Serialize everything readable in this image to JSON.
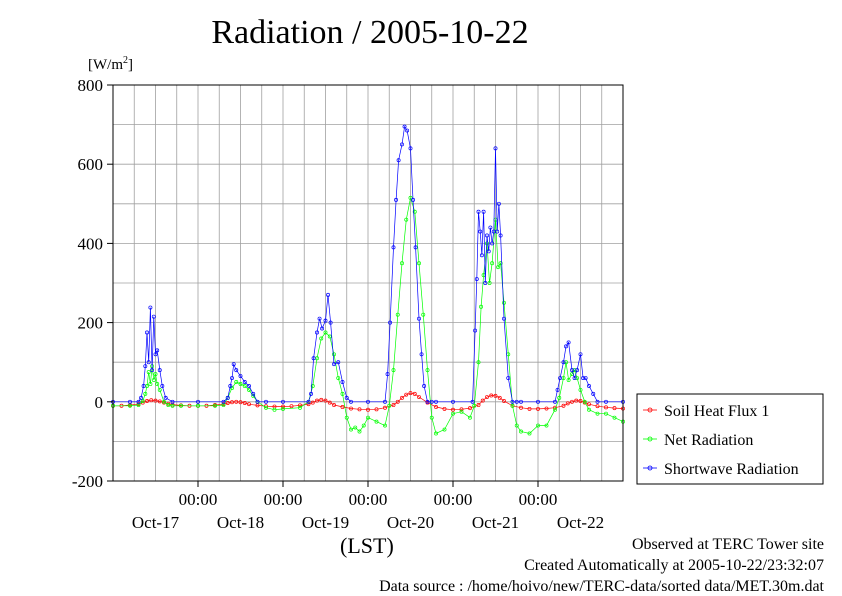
{
  "colors": {
    "soil": "#ff0000",
    "net": "#00ff00",
    "shortwave": "#0000ff",
    "grid": "#a0a0a0",
    "frame": "#000000"
  },
  "footer": {
    "line1": "Observed at TERC Tower site",
    "line2": "Created Automatically at 2005-10-22/23:32:07",
    "line3": "Data source : /home/hoivo/new/TERC-data/sorted  data/MET.30m.dat"
  },
  "chart_data": {
    "type": "line",
    "title": "Radiation / 2005-10-22",
    "ylabel": "[W/m2]",
    "xlabel": "(LST)",
    "ylim": [
      -200,
      800
    ],
    "yticks": [
      -200,
      0,
      200,
      400,
      600,
      800
    ],
    "xlim_days": [
      0,
      6
    ],
    "xtick_labels": [
      "00:00",
      "00:00",
      "00:00",
      "00:00",
      "00:00"
    ],
    "xtick_positions": [
      1,
      2,
      3,
      4,
      5
    ],
    "day_labels": [
      "Oct-17",
      "Oct-18",
      "Oct-19",
      "Oct-20",
      "Oct-21",
      "Oct-22"
    ],
    "day_label_positions": [
      0.5,
      1.5,
      2.5,
      3.5,
      4.5,
      5.5
    ],
    "grid": true,
    "legend_position": "right",
    "series": [
      {
        "name": "Soil Heat Flux 1",
        "key": "soil",
        "x": [
          0.0,
          0.1,
          0.2,
          0.3,
          0.35,
          0.4,
          0.45,
          0.5,
          0.55,
          0.6,
          0.65,
          0.7,
          0.8,
          0.9,
          1.0,
          1.1,
          1.2,
          1.3,
          1.35,
          1.4,
          1.45,
          1.5,
          1.55,
          1.6,
          1.7,
          1.8,
          1.9,
          2.0,
          2.1,
          2.2,
          2.3,
          2.35,
          2.4,
          2.45,
          2.5,
          2.55,
          2.6,
          2.7,
          2.8,
          2.9,
          3.0,
          3.1,
          3.2,
          3.3,
          3.35,
          3.4,
          3.45,
          3.5,
          3.55,
          3.6,
          3.7,
          3.8,
          3.9,
          4.0,
          4.1,
          4.2,
          4.3,
          4.35,
          4.4,
          4.45,
          4.5,
          4.55,
          4.6,
          4.7,
          4.8,
          4.9,
          5.0,
          5.1,
          5.2,
          5.3,
          5.35,
          5.4,
          5.45,
          5.5,
          5.55,
          5.6,
          5.7,
          5.8,
          5.9,
          6.0
        ],
        "y": [
          -10,
          -10,
          -8,
          -6,
          -2,
          2,
          4,
          3,
          1,
          -2,
          -5,
          -7,
          -9,
          -10,
          -10,
          -10,
          -8,
          -6,
          -3,
          -1,
          0,
          -1,
          -3,
          -6,
          -9,
          -11,
          -12,
          -12,
          -11,
          -9,
          -6,
          -2,
          3,
          5,
          3,
          -2,
          -8,
          -13,
          -17,
          -19,
          -20,
          -19,
          -15,
          -8,
          0,
          10,
          18,
          22,
          20,
          12,
          -2,
          -13,
          -18,
          -20,
          -19,
          -16,
          -8,
          3,
          12,
          16,
          15,
          10,
          2,
          -10,
          -15,
          -18,
          -18,
          -17,
          -15,
          -10,
          -4,
          0,
          3,
          2,
          -2,
          -6,
          -11,
          -14,
          -16,
          -17
        ]
      },
      {
        "name": "Net Radiation",
        "key": "net",
        "x": [
          0.0,
          0.2,
          0.3,
          0.35,
          0.38,
          0.4,
          0.42,
          0.44,
          0.46,
          0.48,
          0.5,
          0.52,
          0.55,
          0.6,
          0.65,
          0.7,
          0.8,
          1.0,
          1.2,
          1.3,
          1.35,
          1.4,
          1.45,
          1.5,
          1.55,
          1.6,
          1.65,
          1.7,
          1.8,
          1.9,
          2.0,
          2.2,
          2.3,
          2.35,
          2.4,
          2.45,
          2.5,
          2.55,
          2.6,
          2.65,
          2.7,
          2.75,
          2.8,
          2.85,
          2.9,
          2.95,
          3.0,
          3.1,
          3.2,
          3.25,
          3.3,
          3.35,
          3.4,
          3.45,
          3.5,
          3.55,
          3.6,
          3.65,
          3.7,
          3.75,
          3.8,
          3.9,
          4.0,
          4.1,
          4.2,
          4.25,
          4.3,
          4.33,
          4.36,
          4.4,
          4.43,
          4.46,
          4.5,
          4.53,
          4.56,
          4.6,
          4.65,
          4.7,
          4.75,
          4.8,
          4.9,
          5.0,
          5.1,
          5.2,
          5.25,
          5.3,
          5.33,
          5.36,
          5.4,
          5.43,
          5.46,
          5.5,
          5.55,
          5.6,
          5.7,
          5.8,
          5.9,
          6.0
        ],
        "y": [
          -10,
          -10,
          -8,
          2,
          20,
          40,
          75,
          45,
          90,
          55,
          70,
          45,
          30,
          0,
          -8,
          -10,
          -10,
          -10,
          -10,
          -8,
          10,
          35,
          50,
          45,
          40,
          30,
          15,
          0,
          -15,
          -20,
          -18,
          -15,
          0,
          40,
          110,
          160,
          175,
          165,
          120,
          60,
          20,
          -40,
          -70,
          -65,
          -75,
          -60,
          -40,
          -50,
          -60,
          -10,
          80,
          220,
          350,
          460,
          515,
          480,
          350,
          220,
          80,
          -40,
          -80,
          -70,
          -30,
          -25,
          -40,
          -10,
          100,
          240,
          320,
          400,
          300,
          350,
          460,
          340,
          350,
          250,
          120,
          -10,
          -60,
          -75,
          -80,
          -60,
          -60,
          -20,
          10,
          60,
          100,
          55,
          70,
          80,
          60,
          30,
          0,
          -20,
          -30,
          -30,
          -40,
          -50
        ]
      },
      {
        "name": "Shortwave Radiation",
        "key": "shortwave",
        "x": [
          0.0,
          0.2,
          0.3,
          0.33,
          0.36,
          0.38,
          0.4,
          0.42,
          0.44,
          0.46,
          0.48,
          0.5,
          0.52,
          0.55,
          0.58,
          0.62,
          0.7,
          1.0,
          1.3,
          1.35,
          1.38,
          1.4,
          1.42,
          1.45,
          1.5,
          1.55,
          1.6,
          1.65,
          1.7,
          1.8,
          2.0,
          2.3,
          2.33,
          2.36,
          2.4,
          2.43,
          2.46,
          2.5,
          2.53,
          2.56,
          2.6,
          2.65,
          2.7,
          2.75,
          2.8,
          3.0,
          3.2,
          3.23,
          3.26,
          3.3,
          3.33,
          3.36,
          3.4,
          3.43,
          3.46,
          3.5,
          3.53,
          3.56,
          3.6,
          3.63,
          3.66,
          3.7,
          3.75,
          3.8,
          4.0,
          4.23,
          4.26,
          4.28,
          4.3,
          4.32,
          4.34,
          4.36,
          4.38,
          4.4,
          4.42,
          4.44,
          4.46,
          4.48,
          4.5,
          4.52,
          4.54,
          4.56,
          4.6,
          4.65,
          4.7,
          4.75,
          4.8,
          5.0,
          5.2,
          5.23,
          5.26,
          5.3,
          5.33,
          5.36,
          5.4,
          5.43,
          5.46,
          5.5,
          5.53,
          5.56,
          5.6,
          5.65,
          5.7,
          5.8,
          6.0
        ],
        "y": [
          0,
          0,
          0,
          10,
          40,
          90,
          175,
          100,
          238,
          80,
          215,
          120,
          130,
          80,
          40,
          10,
          0,
          0,
          0,
          10,
          40,
          60,
          95,
          80,
          65,
          50,
          40,
          20,
          0,
          0,
          0,
          0,
          20,
          110,
          175,
          210,
          185,
          205,
          270,
          200,
          95,
          100,
          50,
          10,
          0,
          0,
          0,
          70,
          200,
          390,
          510,
          610,
          650,
          695,
          685,
          640,
          510,
          390,
          210,
          120,
          40,
          0,
          0,
          0,
          0,
          0,
          180,
          310,
          480,
          430,
          370,
          480,
          300,
          420,
          380,
          440,
          400,
          430,
          640,
          430,
          500,
          420,
          210,
          60,
          0,
          0,
          0,
          0,
          0,
          30,
          60,
          100,
          140,
          150,
          80,
          60,
          80,
          120,
          60,
          60,
          40,
          20,
          0,
          0,
          0
        ]
      }
    ]
  }
}
